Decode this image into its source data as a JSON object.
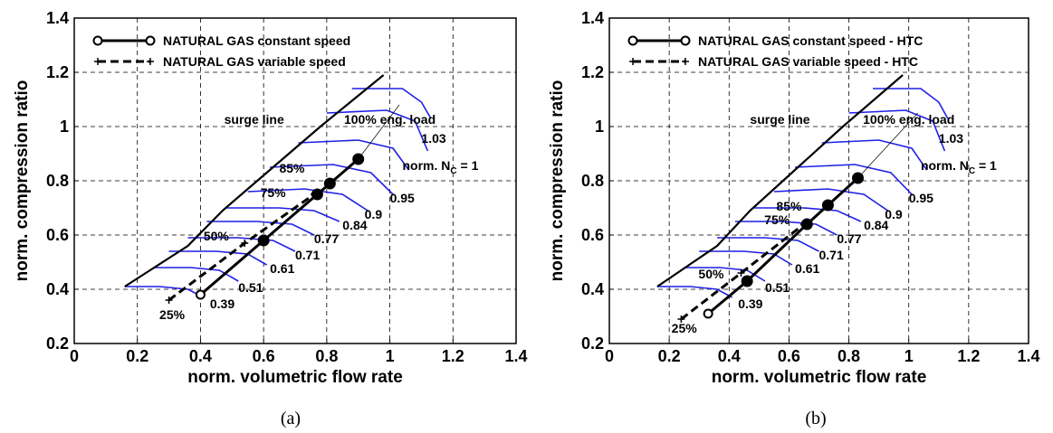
{
  "chart_data": [
    {
      "type": "line",
      "panel_label": "(a)",
      "panel_letter": "a",
      "xlabel": "norm. volumetric flow rate",
      "ylabel": "norm. compression ratio",
      "xlim": [
        0,
        1.4
      ],
      "ylim": [
        0.2,
        1.4
      ],
      "xticks": [
        "0",
        "0.2",
        "0.4",
        "0.6",
        "0.8",
        "1",
        "1.2",
        "1.4"
      ],
      "yticks": [
        "0.2",
        "0.4",
        "0.6",
        "0.8",
        "1",
        "1.2",
        "1.4"
      ],
      "grid": true,
      "legend_position": "top-left",
      "surge_line_label": "surge line",
      "load_label": "100% eng. load",
      "speed_label_prefix": "norm. N",
      "speed_label_sub": "C",
      "speed_label_suffix": " = 1",
      "series": [
        {
          "name": "NATURAL GAS constant speed",
          "style": "solid-circle",
          "x": [
            0.4,
            0.6,
            0.77,
            0.81,
            0.9
          ],
          "y": [
            0.38,
            0.58,
            0.75,
            0.79,
            0.88
          ]
        },
        {
          "name": "NATURAL GAS variable speed",
          "style": "dashed-plus",
          "x": [
            0.3,
            0.54,
            0.76
          ],
          "y": [
            0.36,
            0.57,
            0.75
          ]
        }
      ],
      "surge_line": {
        "x": [
          0.16,
          0.36,
          0.47,
          0.6,
          0.78,
          0.98
        ],
        "y": [
          0.41,
          0.56,
          0.69,
          0.82,
          1.0,
          1.19
        ]
      },
      "load_line": {
        "x": [
          0.9,
          1.03
        ],
        "y": [
          0.88,
          1.08
        ]
      },
      "speed_curves": [
        {
          "label": "0.39",
          "x": [
            0.16,
            0.27,
            0.36,
            0.41
          ],
          "y": [
            0.41,
            0.41,
            0.4,
            0.37
          ]
        },
        {
          "label": "0.51",
          "x": [
            0.25,
            0.37,
            0.46,
            0.52
          ],
          "y": [
            0.48,
            0.48,
            0.47,
            0.43
          ]
        },
        {
          "label": "0.61",
          "x": [
            0.3,
            0.45,
            0.55,
            0.61
          ],
          "y": [
            0.54,
            0.54,
            0.53,
            0.49
          ]
        },
        {
          "label": "0.71",
          "x": [
            0.36,
            0.52,
            0.63,
            0.7
          ],
          "y": [
            0.59,
            0.59,
            0.58,
            0.54
          ]
        },
        {
          "label": "0.77",
          "x": [
            0.42,
            0.58,
            0.69,
            0.76
          ],
          "y": [
            0.65,
            0.65,
            0.64,
            0.6
          ]
        },
        {
          "label": "0.84",
          "x": [
            0.48,
            0.65,
            0.76,
            0.84
          ],
          "y": [
            0.7,
            0.7,
            0.69,
            0.65
          ]
        },
        {
          "label": "0.9",
          "x": [
            0.55,
            0.73,
            0.85,
            0.93
          ],
          "y": [
            0.76,
            0.77,
            0.75,
            0.69
          ]
        },
        {
          "label": "0.95",
          "x": [
            0.62,
            0.82,
            0.94,
            1.01
          ],
          "y": [
            0.85,
            0.86,
            0.83,
            0.75
          ]
        },
        {
          "label": "1",
          "x": [
            0.71,
            0.9,
            1.01,
            1.06
          ],
          "y": [
            0.94,
            0.95,
            0.92,
            0.84
          ]
        },
        {
          "label": "1.03",
          "x": [
            0.8,
            0.99,
            1.08,
            1.12
          ],
          "y": [
            1.05,
            1.06,
            1.02,
            0.91
          ]
        },
        {
          "label": "",
          "x": [
            0.88,
            1.04,
            1.1,
            1.13
          ],
          "y": [
            1.14,
            1.14,
            1.09,
            1.03
          ]
        }
      ],
      "load_labels": [
        {
          "text": "85%",
          "x": 0.69,
          "y": 0.83
        },
        {
          "text": "75%",
          "x": 0.63,
          "y": 0.74
        },
        {
          "text": "50%",
          "x": 0.45,
          "y": 0.58
        },
        {
          "text": "25%",
          "x": 0.31,
          "y": 0.29
        }
      ],
      "speed_label_positions": {
        "0.39": [
          0.43,
          0.33
        ],
        "0.51": [
          0.52,
          0.39
        ],
        "0.61": [
          0.62,
          0.46
        ],
        "0.71": [
          0.7,
          0.51
        ],
        "0.77": [
          0.76,
          0.57
        ],
        "0.84": [
          0.85,
          0.62
        ],
        "0.9": [
          0.92,
          0.66
        ],
        "0.95": [
          1.0,
          0.72
        ],
        "1.03": [
          1.1,
          0.94
        ]
      },
      "annotation_positions": {
        "surge": [
          0.57,
          1.01
        ],
        "load": [
          1.0,
          1.01
        ],
        "nc": [
          1.04,
          0.84
        ]
      }
    },
    {
      "type": "line",
      "panel_label": "(b)",
      "panel_letter": "b",
      "xlabel": "norm. volumetric flow rate",
      "ylabel": "norm. compression ratio",
      "xlim": [
        0,
        1.4
      ],
      "ylim": [
        0.2,
        1.4
      ],
      "xticks": [
        "0",
        "0.2",
        "0.4",
        "0.6",
        "0.8",
        "1",
        "1.2",
        "1.4"
      ],
      "yticks": [
        "0.2",
        "0.4",
        "0.6",
        "0.8",
        "1",
        "1.2",
        "1.4"
      ],
      "grid": true,
      "legend_position": "top-left",
      "surge_line_label": "surge line",
      "load_label": "100% eng. load",
      "speed_label_prefix": "norm. N",
      "speed_label_sub": "C",
      "speed_label_suffix": " = 1",
      "series": [
        {
          "name": "NATURAL GAS constant speed - HTC",
          "style": "solid-circle",
          "x": [
            0.33,
            0.46,
            0.66,
            0.73,
            0.83
          ],
          "y": [
            0.31,
            0.43,
            0.64,
            0.71,
            0.81
          ]
        },
        {
          "name": "NATURAL GAS variable speed - HTC",
          "style": "dashed-plus",
          "x": [
            0.24,
            0.44,
            0.65
          ],
          "y": [
            0.29,
            0.46,
            0.64
          ]
        }
      ],
      "surge_line": {
        "x": [
          0.16,
          0.36,
          0.47,
          0.6,
          0.78,
          0.98
        ],
        "y": [
          0.41,
          0.56,
          0.69,
          0.82,
          1.0,
          1.19
        ]
      },
      "load_line": {
        "x": [
          0.83,
          1.03
        ],
        "y": [
          0.81,
          1.05
        ]
      },
      "speed_curves": [
        {
          "label": "0.39",
          "x": [
            0.16,
            0.27,
            0.36,
            0.41
          ],
          "y": [
            0.41,
            0.41,
            0.4,
            0.37
          ]
        },
        {
          "label": "0.51",
          "x": [
            0.25,
            0.37,
            0.46,
            0.52
          ],
          "y": [
            0.48,
            0.48,
            0.47,
            0.43
          ]
        },
        {
          "label": "0.61",
          "x": [
            0.3,
            0.45,
            0.55,
            0.61
          ],
          "y": [
            0.54,
            0.54,
            0.53,
            0.49
          ]
        },
        {
          "label": "0.71",
          "x": [
            0.36,
            0.52,
            0.63,
            0.7
          ],
          "y": [
            0.59,
            0.59,
            0.58,
            0.54
          ]
        },
        {
          "label": "0.77",
          "x": [
            0.42,
            0.58,
            0.69,
            0.76
          ],
          "y": [
            0.65,
            0.65,
            0.64,
            0.6
          ]
        },
        {
          "label": "0.84",
          "x": [
            0.48,
            0.65,
            0.76,
            0.84
          ],
          "y": [
            0.7,
            0.7,
            0.69,
            0.65
          ]
        },
        {
          "label": "0.9",
          "x": [
            0.55,
            0.73,
            0.85,
            0.93
          ],
          "y": [
            0.76,
            0.77,
            0.75,
            0.69
          ]
        },
        {
          "label": "0.95",
          "x": [
            0.62,
            0.82,
            0.94,
            1.01
          ],
          "y": [
            0.85,
            0.86,
            0.83,
            0.75
          ]
        },
        {
          "label": "1",
          "x": [
            0.71,
            0.9,
            1.01,
            1.06
          ],
          "y": [
            0.94,
            0.95,
            0.92,
            0.84
          ]
        },
        {
          "label": "1.03",
          "x": [
            0.8,
            0.99,
            1.08,
            1.12
          ],
          "y": [
            1.05,
            1.06,
            1.02,
            0.91
          ]
        },
        {
          "label": "",
          "x": [
            0.88,
            1.04,
            1.1,
            1.13
          ],
          "y": [
            1.14,
            1.14,
            1.09,
            1.03
          ]
        }
      ],
      "load_labels": [
        {
          "text": "85%",
          "x": 0.6,
          "y": 0.69
        },
        {
          "text": "75%",
          "x": 0.56,
          "y": 0.64
        },
        {
          "text": "50%",
          "x": 0.34,
          "y": 0.44
        },
        {
          "text": "25%",
          "x": 0.25,
          "y": 0.24
        }
      ],
      "speed_label_positions": {
        "0.39": [
          0.43,
          0.33
        ],
        "0.51": [
          0.52,
          0.39
        ],
        "0.61": [
          0.62,
          0.46
        ],
        "0.71": [
          0.7,
          0.51
        ],
        "0.77": [
          0.76,
          0.57
        ],
        "0.84": [
          0.85,
          0.62
        ],
        "0.9": [
          0.92,
          0.66
        ],
        "0.95": [
          1.0,
          0.72
        ],
        "1.03": [
          1.1,
          0.94
        ]
      },
      "annotation_positions": {
        "surge": [
          0.57,
          1.01
        ],
        "load": [
          1.0,
          1.01
        ],
        "nc": [
          1.04,
          0.84
        ]
      }
    }
  ]
}
